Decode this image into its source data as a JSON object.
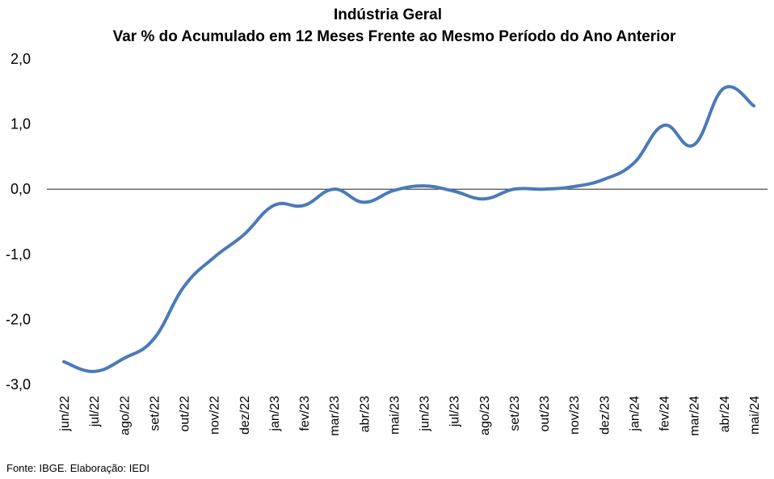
{
  "chart_data": {
    "type": "line",
    "title": "Indústria Geral",
    "subtitle": "Var % do Acumulado em 12 Meses Frente ao Mesmo Período do Ano Anterior",
    "xlabel": "",
    "ylabel": "",
    "categories": [
      "jun/22",
      "jul/22",
      "ago/22",
      "set/22",
      "out/22",
      "nov/22",
      "dez/22",
      "jan/23",
      "fev/23",
      "mar/23",
      "abr/23",
      "mai/23",
      "jun/23",
      "jul/23",
      "ago/23",
      "set/23",
      "out/23",
      "nov/23",
      "dez/23",
      "jan/24",
      "fev/24",
      "mar/24",
      "abr/24",
      "mai/24"
    ],
    "series": [
      {
        "name": "",
        "color": "#4a7ab8",
        "values": [
          -2.65,
          -2.8,
          -2.6,
          -2.3,
          -1.5,
          -1.05,
          -0.7,
          -0.25,
          -0.25,
          0.0,
          -0.2,
          -0.02,
          0.05,
          -0.03,
          -0.15,
          0.0,
          0.0,
          0.04,
          0.15,
          0.4,
          0.98,
          0.68,
          1.55,
          1.28
        ]
      }
    ],
    "ylim": [
      -3.0,
      2.0
    ],
    "yticks": [
      "2,0",
      "1,0",
      "0,0",
      "-1,0",
      "-2,0",
      "-3,0"
    ],
    "ytick_values": [
      2.0,
      1.0,
      0.0,
      -1.0,
      -2.0,
      -3.0
    ],
    "zero_line": true,
    "grid": false,
    "legend": "none"
  },
  "source_note": "Fonte: IBGE. Elaboração: IEDI"
}
